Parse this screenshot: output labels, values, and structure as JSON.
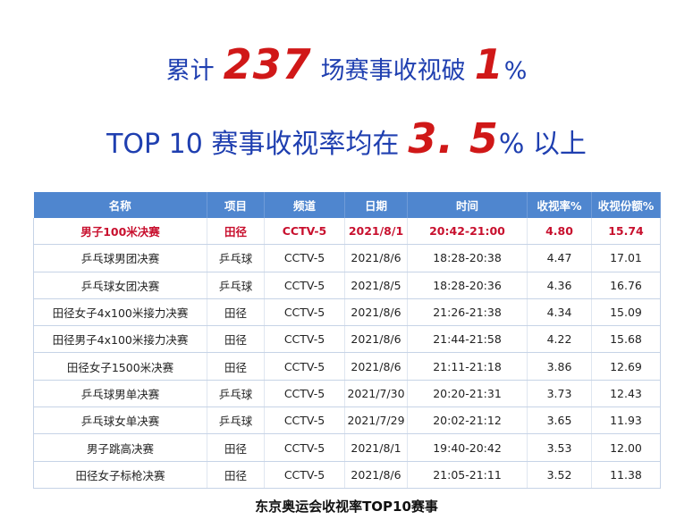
{
  "headline1": {
    "pre": "累计",
    "num": "237",
    "mid": "场赛事收视破",
    "num2": "1",
    "post": "%"
  },
  "headline2": {
    "pre": "TOP 10 赛事收视率均在",
    "num": "3. 5",
    "post": "% 以上"
  },
  "table": {
    "headers": [
      "名称",
      "项目",
      "频道",
      "日期",
      "时间",
      "收视率%",
      "收视份额%"
    ],
    "rows": [
      [
        "男子100米决赛",
        "田径",
        "CCTV-5",
        "2021/8/1",
        "20:42-21:00",
        "4.80",
        "15.74"
      ],
      [
        "乒乓球男团决赛",
        "乒乓球",
        "CCTV-5",
        "2021/8/6",
        "18:28-20:38",
        "4.47",
        "17.01"
      ],
      [
        "乒乓球女团决赛",
        "乒乓球",
        "CCTV-5",
        "2021/8/5",
        "18:28-20:36",
        "4.36",
        "16.76"
      ],
      [
        "田径女子4x100米接力决赛",
        "田径",
        "CCTV-5",
        "2021/8/6",
        "21:26-21:38",
        "4.34",
        "15.09"
      ],
      [
        "田径男子4x100米接力决赛",
        "田径",
        "CCTV-5",
        "2021/8/6",
        "21:44-21:58",
        "4.22",
        "15.68"
      ],
      [
        "田径女子1500米决赛",
        "田径",
        "CCTV-5",
        "2021/8/6",
        "21:11-21:18",
        "3.86",
        "12.69"
      ],
      [
        "乒乓球男单决赛",
        "乒乓球",
        "CCTV-5",
        "2021/7/30",
        "20:20-21:31",
        "3.73",
        "12.43"
      ],
      [
        "乒乓球女单决赛",
        "乒乓球",
        "CCTV-5",
        "2021/7/29",
        "20:02-21:12",
        "3.65",
        "11.93"
      ],
      [
        "男子跳高决赛",
        "田径",
        "CCTV-5",
        "2021/8/1",
        "19:40-20:42",
        "3.53",
        "12.00"
      ],
      [
        "田径女子标枪决赛",
        "田径",
        "CCTV-5",
        "2021/8/6",
        "21:05-21:11",
        "3.52",
        "11.38"
      ]
    ]
  },
  "caption": "东京奥运会收视率TOP10赛事",
  "colors": {
    "headline": "#1f3fb0",
    "accent": "#d01818",
    "header_bg": "#4f86cf",
    "highlight_row": "#c8102e"
  }
}
